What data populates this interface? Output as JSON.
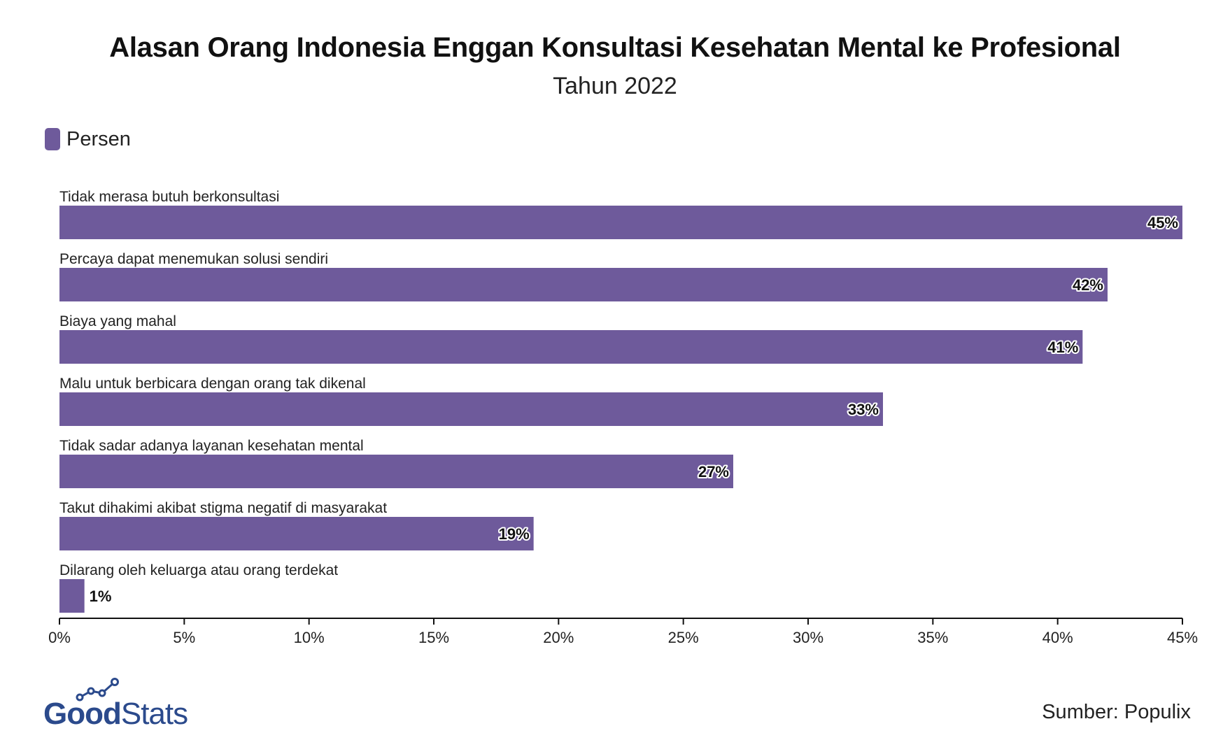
{
  "title": "Alasan Orang Indonesia Enggan Konsultasi Kesehatan Mental ke Profesional",
  "subtitle": "Tahun 2022",
  "legend": {
    "label": "Persen",
    "color": "#6e5a9b"
  },
  "source": "Sumber: Populix",
  "logo": {
    "text_bold": "Good",
    "text_light": "Stats",
    "color": "#2b4a8c"
  },
  "chart_data": {
    "type": "bar",
    "orientation": "horizontal",
    "categories": [
      "Tidak merasa butuh berkonsultasi",
      "Percaya dapat menemukan solusi sendiri",
      "Biaya yang mahal",
      "Malu untuk berbicara dengan orang tak dikenal",
      "Tidak sadar adanya layanan kesehatan mental",
      "Takut dihakimi akibat stigma negatif di masyarakat",
      "Dilarang oleh keluarga atau orang terdekat"
    ],
    "series": [
      {
        "name": "Persen",
        "values": [
          45,
          42,
          41,
          33,
          27,
          19,
          1
        ],
        "labels": [
          "45%",
          "42%",
          "41%",
          "33%",
          "27%",
          "19%",
          "1%"
        ],
        "color": "#6e5a9b"
      }
    ],
    "xlim": [
      0,
      45
    ],
    "xticks": [
      0,
      5,
      10,
      15,
      20,
      25,
      30,
      35,
      40,
      45
    ],
    "xtick_labels": [
      "0%",
      "5%",
      "10%",
      "15%",
      "20%",
      "25%",
      "30%",
      "35%",
      "40%",
      "45%"
    ],
    "grid": false,
    "legend_position": "top-left"
  }
}
